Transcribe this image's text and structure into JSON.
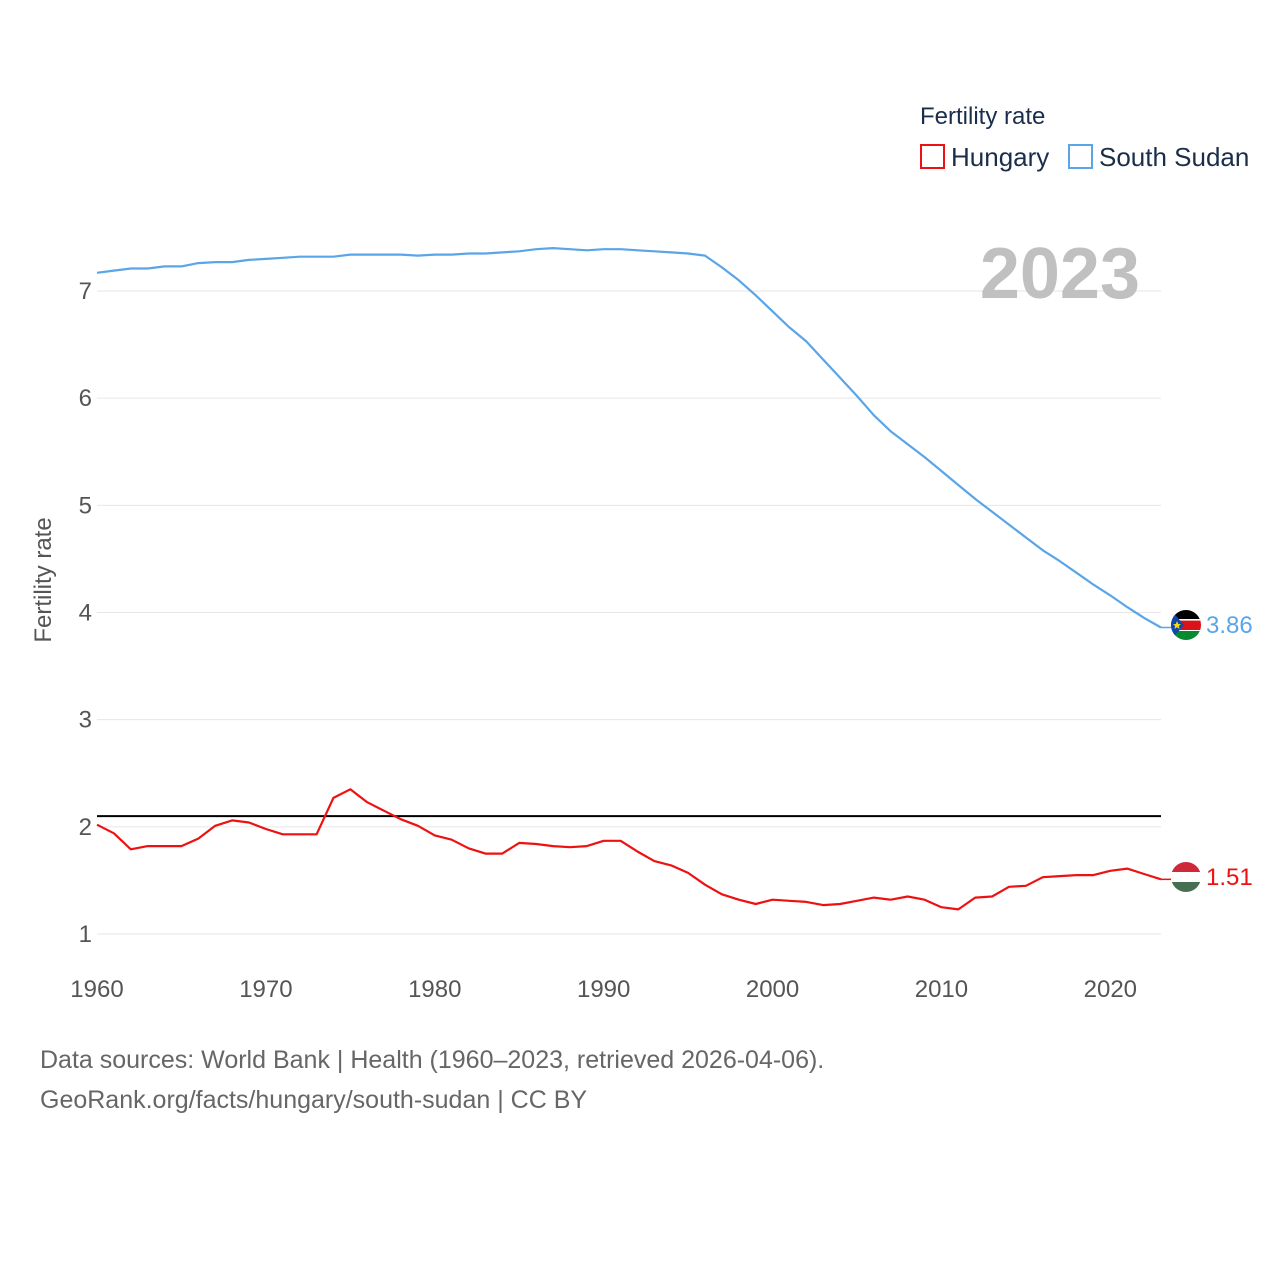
{
  "chart_data": {
    "type": "line",
    "title": "",
    "year_display": "2023",
    "xlabel": "",
    "ylabel": "Fertility rate",
    "xlim": [
      1960,
      2023
    ],
    "ylim": [
      0.8,
      7.8
    ],
    "x_ticks": [
      1960,
      1970,
      1980,
      1990,
      2000,
      2010,
      2020
    ],
    "y_ticks": [
      1,
      2,
      3,
      4,
      5,
      6,
      7
    ],
    "grid": true,
    "legend": {
      "title": "Fertility rate",
      "position": "top-right",
      "entries": [
        {
          "name": "Hungary",
          "color": "#ee1111"
        },
        {
          "name": "South Sudan",
          "color": "#5aa5e8"
        }
      ]
    },
    "reference_line": {
      "value": 2.1,
      "color": "#000000"
    },
    "x": [
      1960,
      1961,
      1962,
      1963,
      1964,
      1965,
      1966,
      1967,
      1968,
      1969,
      1970,
      1971,
      1972,
      1973,
      1974,
      1975,
      1976,
      1977,
      1978,
      1979,
      1980,
      1981,
      1982,
      1983,
      1984,
      1985,
      1986,
      1987,
      1988,
      1989,
      1990,
      1991,
      1992,
      1993,
      1994,
      1995,
      1996,
      1997,
      1998,
      1999,
      2000,
      2001,
      2002,
      2003,
      2004,
      2005,
      2006,
      2007,
      2008,
      2009,
      2010,
      2011,
      2012,
      2013,
      2014,
      2015,
      2016,
      2017,
      2018,
      2019,
      2020,
      2021,
      2022,
      2023
    ],
    "series": [
      {
        "name": "Hungary",
        "color": "#ee1111",
        "end_label": "1.51",
        "values": [
          2.02,
          1.94,
          1.79,
          1.82,
          1.82,
          1.82,
          1.89,
          2.01,
          2.06,
          2.04,
          1.98,
          1.93,
          1.93,
          1.93,
          2.27,
          2.35,
          2.23,
          2.15,
          2.07,
          2.01,
          1.92,
          1.88,
          1.8,
          1.75,
          1.75,
          1.85,
          1.84,
          1.82,
          1.81,
          1.82,
          1.87,
          1.87,
          1.77,
          1.68,
          1.64,
          1.57,
          1.46,
          1.37,
          1.32,
          1.28,
          1.32,
          1.31,
          1.3,
          1.27,
          1.28,
          1.31,
          1.34,
          1.32,
          1.35,
          1.32,
          1.25,
          1.23,
          1.34,
          1.35,
          1.44,
          1.45,
          1.53,
          1.54,
          1.55,
          1.55,
          1.59,
          1.61,
          1.56,
          1.51
        ]
      },
      {
        "name": "South Sudan",
        "color": "#5aa5e8",
        "end_label": "3.86",
        "values": [
          7.17,
          7.19,
          7.21,
          7.21,
          7.23,
          7.23,
          7.26,
          7.27,
          7.27,
          7.29,
          7.3,
          7.31,
          7.32,
          7.32,
          7.32,
          7.34,
          7.34,
          7.34,
          7.34,
          7.33,
          7.34,
          7.34,
          7.35,
          7.35,
          7.36,
          7.37,
          7.39,
          7.4,
          7.39,
          7.38,
          7.39,
          7.39,
          7.38,
          7.37,
          7.36,
          7.35,
          7.33,
          7.22,
          7.1,
          6.96,
          6.81,
          6.66,
          6.53,
          6.36,
          6.19,
          6.02,
          5.84,
          5.69,
          5.57,
          5.45,
          5.32,
          5.19,
          5.06,
          4.94,
          4.82,
          4.7,
          4.58,
          4.48,
          4.37,
          4.26,
          4.16,
          4.05,
          3.95,
          3.86
        ]
      }
    ]
  },
  "footer": {
    "line1": "Data sources: World Bank | Health (1960–2023, retrieved 2026-04-06).",
    "line2": "GeoRank.org/facts/hungary/south-sudan | CC BY"
  }
}
